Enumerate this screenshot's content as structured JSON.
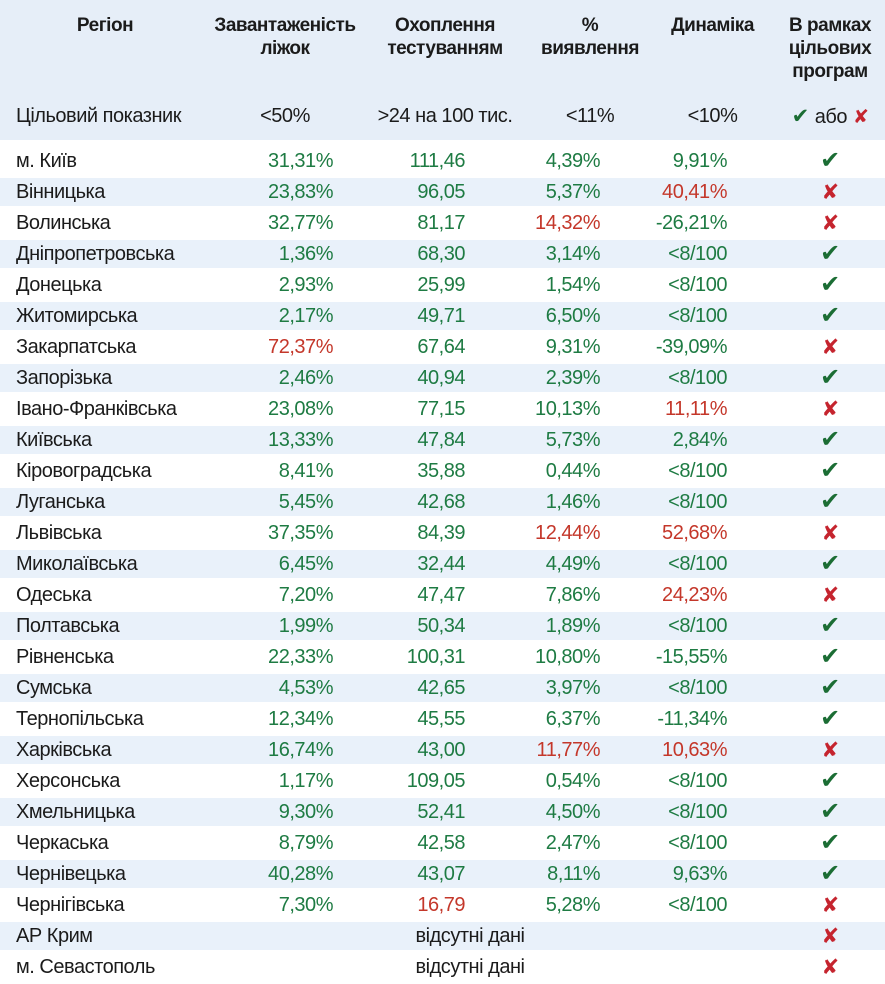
{
  "chart_data": {
    "type": "table",
    "columns": [
      {
        "label": "Регіон",
        "lines": [
          "Регіон"
        ]
      },
      {
        "label": "Завантаженість ліжок",
        "lines": [
          "Завантаженість",
          "ліжок"
        ]
      },
      {
        "label": "Охоплення тестуванням",
        "lines": [
          "Охоплення",
          "тестуванням"
        ]
      },
      {
        "label": "% виявлення",
        "lines": [
          "%",
          "виявлення"
        ]
      },
      {
        "label": "Динаміка",
        "lines": [
          "Динаміка"
        ]
      },
      {
        "label": "В рамках цільових програм",
        "lines": [
          "В рамках",
          "цільових",
          "програм"
        ]
      }
    ],
    "target_row": {
      "label": "Цільовий показник",
      "beds": "<50%",
      "testing": ">24 на 100 тис.",
      "detection": "<11%",
      "dynamics": "<10%",
      "or_label": "або"
    },
    "rows": [
      {
        "region": "м. Київ",
        "beds": [
          "31,31%",
          "ok"
        ],
        "testing": [
          "111,46",
          "ok"
        ],
        "detection": [
          "4,39%",
          "ok"
        ],
        "dynamics": [
          "9,91%",
          "ok"
        ],
        "status": "check"
      },
      {
        "region": "Вінницька",
        "beds": [
          "23,83%",
          "ok"
        ],
        "testing": [
          "96,05",
          "ok"
        ],
        "detection": [
          "5,37%",
          "ok"
        ],
        "dynamics": [
          "40,41%",
          "bad"
        ],
        "status": "cross"
      },
      {
        "region": "Волинська",
        "beds": [
          "32,77%",
          "ok"
        ],
        "testing": [
          "81,17",
          "ok"
        ],
        "detection": [
          "14,32%",
          "bad"
        ],
        "dynamics": [
          "-26,21%",
          "ok"
        ],
        "status": "cross"
      },
      {
        "region": "Дніпропетровська",
        "beds": [
          "1,36%",
          "ok"
        ],
        "testing": [
          "68,30",
          "ok"
        ],
        "detection": [
          "3,14%",
          "ok"
        ],
        "dynamics": [
          "<8/100",
          "ok"
        ],
        "status": "check"
      },
      {
        "region": "Донецька",
        "beds": [
          "2,93%",
          "ok"
        ],
        "testing": [
          "25,99",
          "ok"
        ],
        "detection": [
          "1,54%",
          "ok"
        ],
        "dynamics": [
          "<8/100",
          "ok"
        ],
        "status": "check"
      },
      {
        "region": "Житомирська",
        "beds": [
          "2,17%",
          "ok"
        ],
        "testing": [
          "49,71",
          "ok"
        ],
        "detection": [
          "6,50%",
          "ok"
        ],
        "dynamics": [
          "<8/100",
          "ok"
        ],
        "status": "check"
      },
      {
        "region": "Закарпатська",
        "beds": [
          "72,37%",
          "bad"
        ],
        "testing": [
          "67,64",
          "ok"
        ],
        "detection": [
          "9,31%",
          "ok"
        ],
        "dynamics": [
          "-39,09%",
          "ok"
        ],
        "status": "cross"
      },
      {
        "region": "Запорізька",
        "beds": [
          "2,46%",
          "ok"
        ],
        "testing": [
          "40,94",
          "ok"
        ],
        "detection": [
          "2,39%",
          "ok"
        ],
        "dynamics": [
          "<8/100",
          "ok"
        ],
        "status": "check"
      },
      {
        "region": "Івано-Франківська",
        "beds": [
          "23,08%",
          "ok"
        ],
        "testing": [
          "77,15",
          "ok"
        ],
        "detection": [
          "10,13%",
          "ok"
        ],
        "dynamics": [
          "11,11%",
          "bad"
        ],
        "status": "cross"
      },
      {
        "region": "Київська",
        "beds": [
          "13,33%",
          "ok"
        ],
        "testing": [
          "47,84",
          "ok"
        ],
        "detection": [
          "5,73%",
          "ok"
        ],
        "dynamics": [
          "2,84%",
          "ok"
        ],
        "status": "check"
      },
      {
        "region": "Кіровоградська",
        "beds": [
          "8,41%",
          "ok"
        ],
        "testing": [
          "35,88",
          "ok"
        ],
        "detection": [
          "0,44%",
          "ok"
        ],
        "dynamics": [
          "<8/100",
          "ok"
        ],
        "status": "check"
      },
      {
        "region": "Луганська",
        "beds": [
          "5,45%",
          "ok"
        ],
        "testing": [
          "42,68",
          "ok"
        ],
        "detection": [
          "1,46%",
          "ok"
        ],
        "dynamics": [
          "<8/100",
          "ok"
        ],
        "status": "check"
      },
      {
        "region": "Львівська",
        "beds": [
          "37,35%",
          "ok"
        ],
        "testing": [
          "84,39",
          "ok"
        ],
        "detection": [
          "12,44%",
          "bad"
        ],
        "dynamics": [
          "52,68%",
          "bad"
        ],
        "status": "cross"
      },
      {
        "region": "Миколаївська",
        "beds": [
          "6,45%",
          "ok"
        ],
        "testing": [
          "32,44",
          "ok"
        ],
        "detection": [
          "4,49%",
          "ok"
        ],
        "dynamics": [
          "<8/100",
          "ok"
        ],
        "status": "check"
      },
      {
        "region": "Одеська",
        "beds": [
          "7,20%",
          "ok"
        ],
        "testing": [
          "47,47",
          "ok"
        ],
        "detection": [
          "7,86%",
          "ok"
        ],
        "dynamics": [
          "24,23%",
          "bad"
        ],
        "status": "cross"
      },
      {
        "region": "Полтавська",
        "beds": [
          "1,99%",
          "ok"
        ],
        "testing": [
          "50,34",
          "ok"
        ],
        "detection": [
          "1,89%",
          "ok"
        ],
        "dynamics": [
          "<8/100",
          "ok"
        ],
        "status": "check"
      },
      {
        "region": "Рівненська",
        "beds": [
          "22,33%",
          "ok"
        ],
        "testing": [
          "100,31",
          "ok"
        ],
        "detection": [
          "10,80%",
          "ok"
        ],
        "dynamics": [
          "-15,55%",
          "ok"
        ],
        "status": "check"
      },
      {
        "region": "Сумська",
        "beds": [
          "4,53%",
          "ok"
        ],
        "testing": [
          "42,65",
          "ok"
        ],
        "detection": [
          "3,97%",
          "ok"
        ],
        "dynamics": [
          "<8/100",
          "ok"
        ],
        "status": "check"
      },
      {
        "region": "Тернопільська",
        "beds": [
          "12,34%",
          "ok"
        ],
        "testing": [
          "45,55",
          "ok"
        ],
        "detection": [
          "6,37%",
          "ok"
        ],
        "dynamics": [
          "-11,34%",
          "ok"
        ],
        "status": "check"
      },
      {
        "region": "Харківська",
        "beds": [
          "16,74%",
          "ok"
        ],
        "testing": [
          "43,00",
          "ok"
        ],
        "detection": [
          "11,77%",
          "bad"
        ],
        "dynamics": [
          "10,63%",
          "bad"
        ],
        "status": "cross"
      },
      {
        "region": "Херсонська",
        "beds": [
          "1,17%",
          "ok"
        ],
        "testing": [
          "109,05",
          "ok"
        ],
        "detection": [
          "0,54%",
          "ok"
        ],
        "dynamics": [
          "<8/100",
          "ok"
        ],
        "status": "check"
      },
      {
        "region": "Хмельницька",
        "beds": [
          "9,30%",
          "ok"
        ],
        "testing": [
          "52,41",
          "ok"
        ],
        "detection": [
          "4,50%",
          "ok"
        ],
        "dynamics": [
          "<8/100",
          "ok"
        ],
        "status": "check"
      },
      {
        "region": "Черкаська",
        "beds": [
          "8,79%",
          "ok"
        ],
        "testing": [
          "42,58",
          "ok"
        ],
        "detection": [
          "2,47%",
          "ok"
        ],
        "dynamics": [
          "<8/100",
          "ok"
        ],
        "status": "check"
      },
      {
        "region": "Чернівецька",
        "beds": [
          "40,28%",
          "ok"
        ],
        "testing": [
          "43,07",
          "ok"
        ],
        "detection": [
          "8,11%",
          "ok"
        ],
        "dynamics": [
          "9,63%",
          "ok"
        ],
        "status": "check"
      },
      {
        "region": "Чернігівська",
        "beds": [
          "7,30%",
          "ok"
        ],
        "testing": [
          "16,79",
          "bad"
        ],
        "detection": [
          "5,28%",
          "ok"
        ],
        "dynamics": [
          "<8/100",
          "ok"
        ],
        "status": "cross"
      },
      {
        "region": "АР Крим",
        "no_data": "відсутні дані",
        "status": "cross"
      },
      {
        "region": "м. Севастополь",
        "no_data": "відсутні дані",
        "status": "cross"
      }
    ]
  },
  "icons": {
    "check": "✔",
    "cross": "✘"
  },
  "colors": {
    "header_bg": "#e6eef8",
    "row_alt_bg": "#e9f1fa",
    "green": "#1e7b43",
    "red": "#c4372a",
    "check_green": "#1b6d34",
    "cross_red": "#c5242e",
    "text": "#1b1b1b"
  }
}
